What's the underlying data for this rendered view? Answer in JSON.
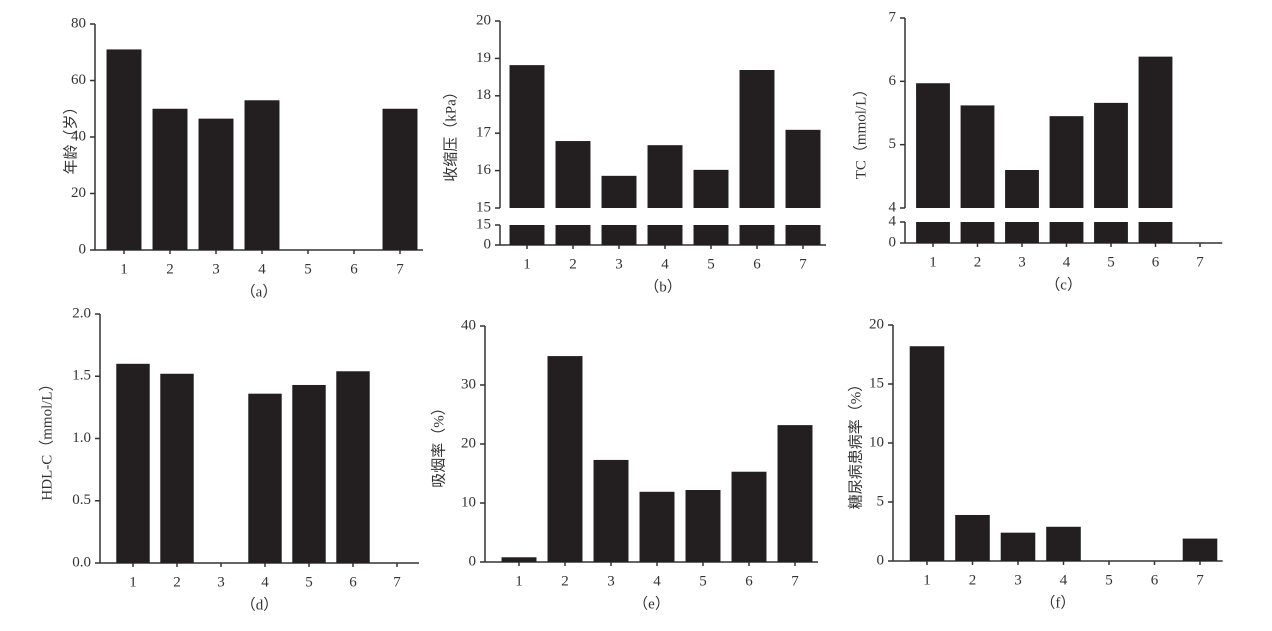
{
  "chart_data": [
    {
      "type": "bar",
      "ylabel": "年龄（岁）",
      "caption": "（a）",
      "categories": [
        "1",
        "2",
        "3",
        "4",
        "5",
        "6",
        "7"
      ],
      "values": [
        71,
        50,
        46.5,
        53,
        null,
        null,
        50
      ],
      "color": "#231f20",
      "ylim": [
        0,
        80
      ],
      "yticks": [
        0,
        20,
        40,
        60,
        80
      ]
    },
    {
      "type": "bar",
      "ylabel": "收缩压（kPa）",
      "caption": "（b）",
      "categories": [
        "1",
        "2",
        "3",
        "4",
        "5",
        "6",
        "7"
      ],
      "values": [
        18.82,
        16.79,
        15.86,
        16.68,
        16.02,
        18.69,
        17.09
      ],
      "color": "#231f20",
      "ylim": [
        15,
        20
      ],
      "yticks": [
        15,
        16,
        17,
        18,
        19,
        20
      ],
      "ylim_lower": [
        0,
        15
      ],
      "yticks_lower": [
        0,
        15
      ]
    },
    {
      "type": "bar",
      "ylabel": "TC（mmol/L）",
      "caption": "（c）",
      "categories": [
        "1",
        "2",
        "3",
        "4",
        "5",
        "6",
        "7"
      ],
      "values": [
        5.97,
        5.62,
        4.6,
        5.45,
        5.66,
        6.39,
        null
      ],
      "color": "#231f20",
      "ylim": [
        4,
        7
      ],
      "yticks": [
        4,
        5,
        6,
        7
      ],
      "ylim_lower": [
        0,
        4
      ],
      "yticks_lower": [
        0,
        4
      ]
    },
    {
      "type": "bar",
      "ylabel": "HDL-C（mmol/L）",
      "caption": "（d）",
      "categories": [
        "1",
        "2",
        "3",
        "4",
        "5",
        "6",
        "7"
      ],
      "values": [
        1.6,
        1.52,
        null,
        1.36,
        1.43,
        1.54,
        null
      ],
      "color": "#231f20",
      "ylim": [
        0,
        2
      ],
      "yticks": [
        {
          "value": 0,
          "label": "0.0"
        },
        {
          "value": 0.5,
          "label": "0.5"
        },
        {
          "value": 1,
          "label": "1.0"
        },
        {
          "value": 1.5,
          "label": "1.5"
        },
        {
          "value": 2,
          "label": "2.0"
        }
      ]
    },
    {
      "type": "bar",
      "ylabel": "吸烟率（%）",
      "caption": "（e）",
      "categories": [
        "1",
        "2",
        "3",
        "4",
        "5",
        "6",
        "7"
      ],
      "values": [
        0.8,
        34.9,
        17.3,
        11.9,
        12.2,
        15.3,
        23.2
      ],
      "color": "#231f20",
      "ylim": [
        0,
        40
      ],
      "yticks": [
        0,
        10,
        20,
        30,
        40
      ]
    },
    {
      "type": "bar",
      "ylabel": "糖尿病患病率（%）",
      "caption": "（f）",
      "categories": [
        "1",
        "2",
        "3",
        "4",
        "5",
        "6",
        "7"
      ],
      "values": [
        18.2,
        3.9,
        2.4,
        2.9,
        null,
        null,
        1.9
      ],
      "color": "#231f20",
      "ylim": [
        0,
        20
      ],
      "yticks": [
        0,
        5,
        10,
        15,
        20
      ]
    }
  ]
}
